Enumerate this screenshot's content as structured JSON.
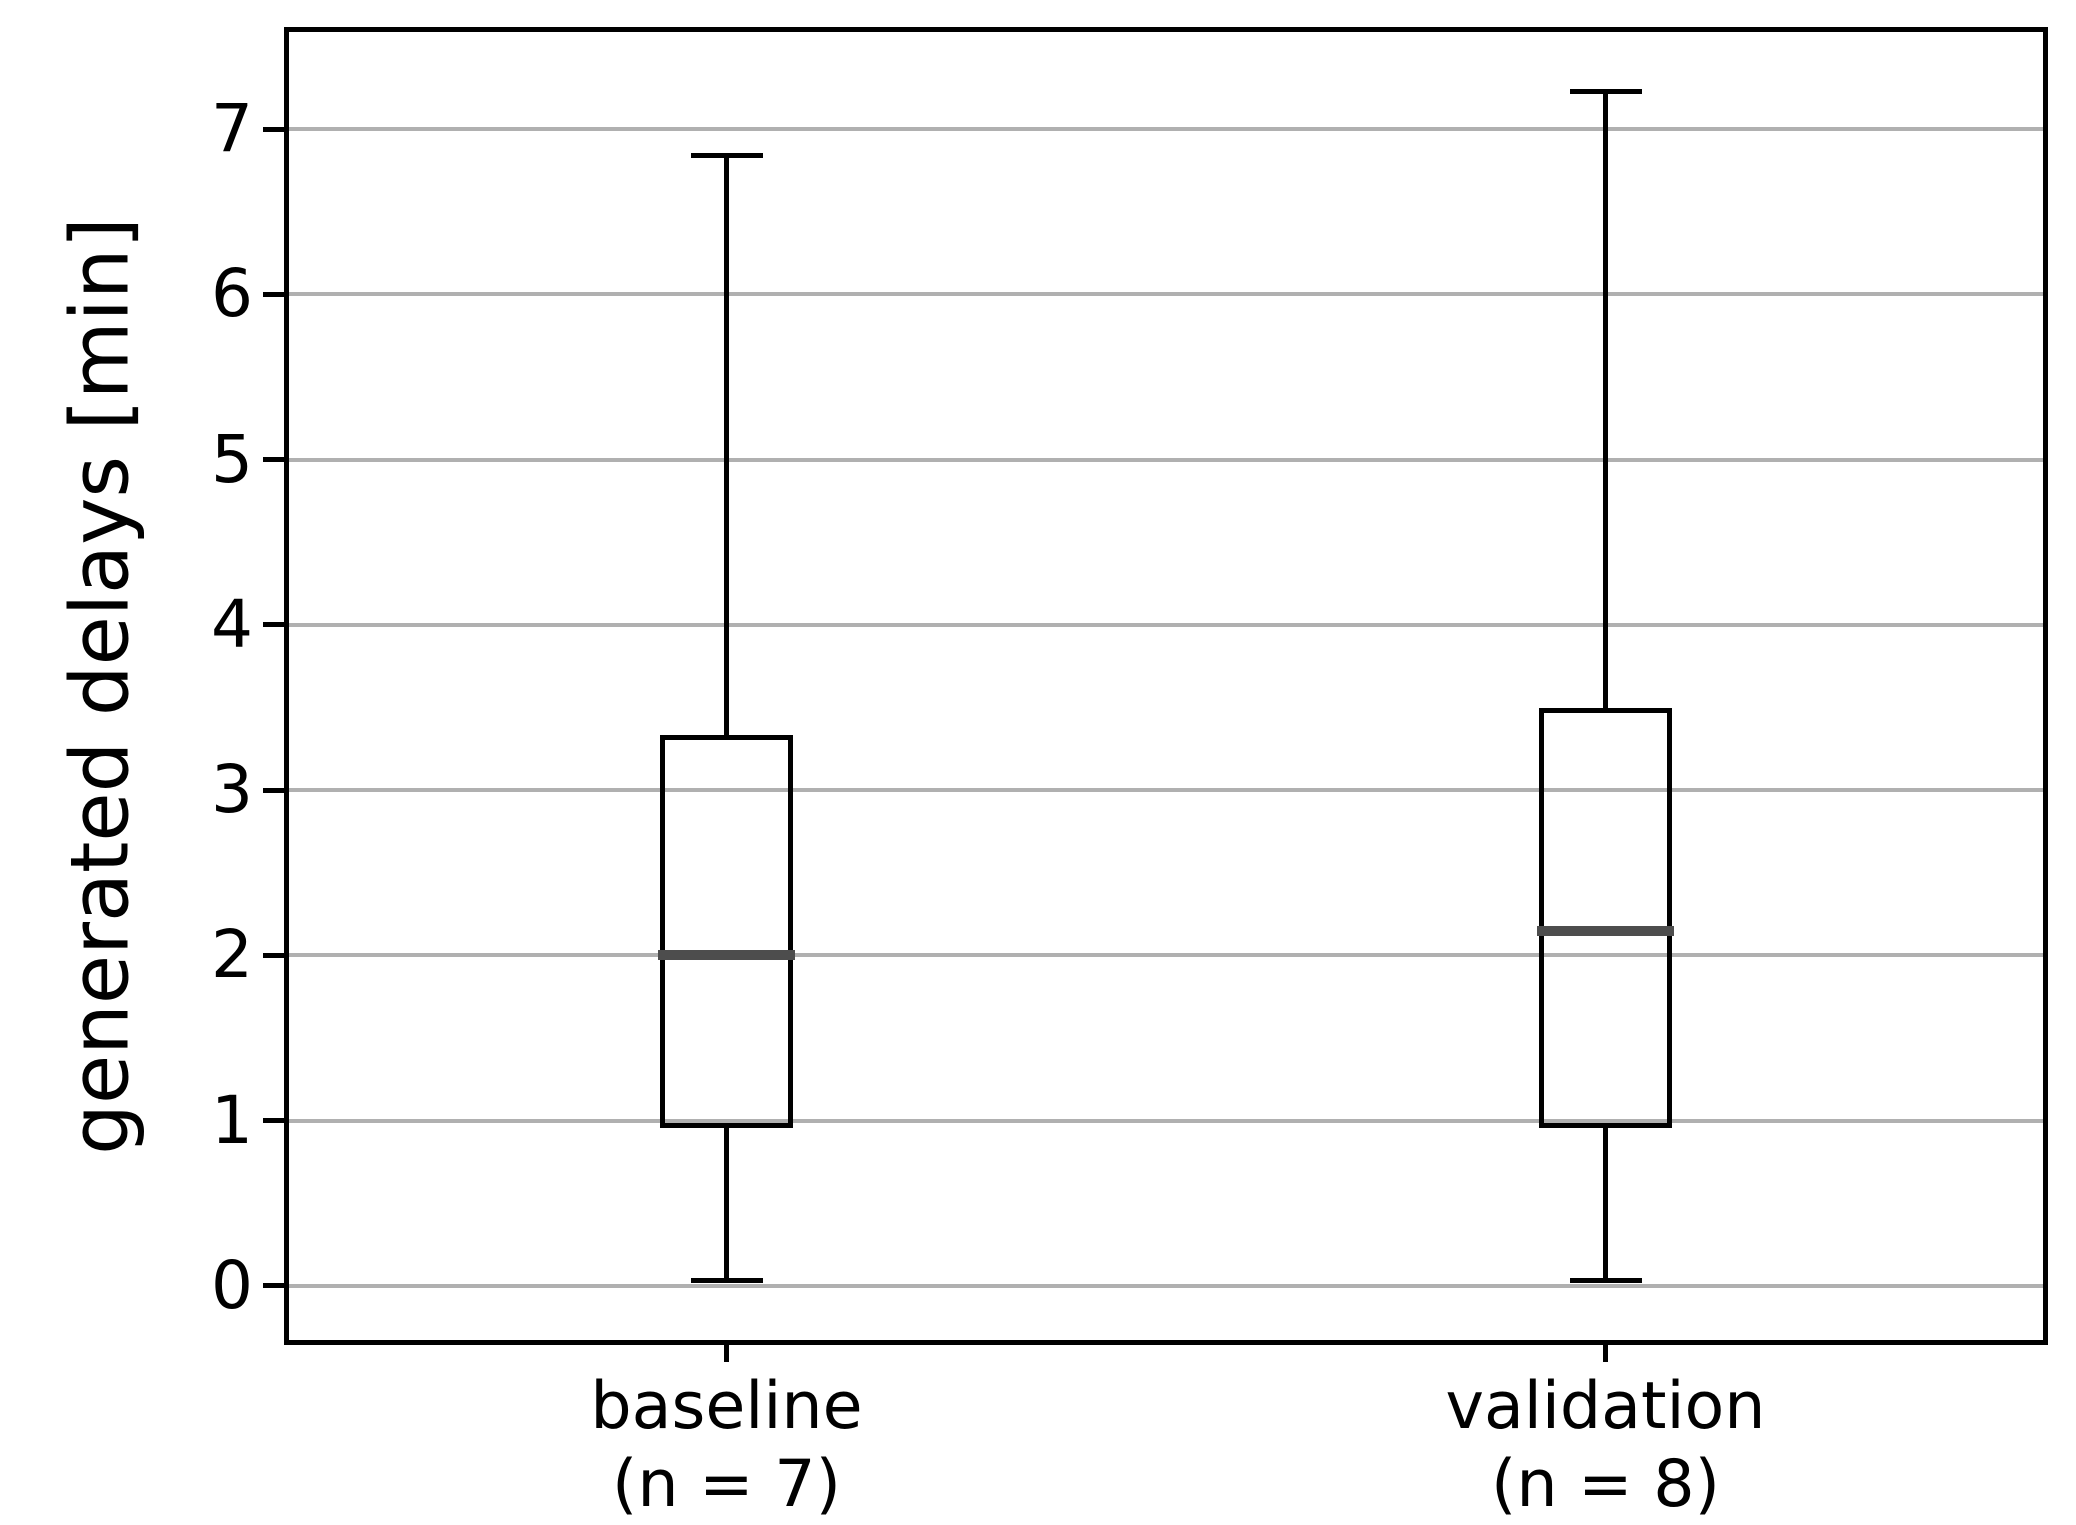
{
  "chart_data": {
    "type": "boxplot",
    "title": "",
    "xlabel": "",
    "ylabel": "generated delays [min]",
    "yticks": [
      "0",
      "1",
      "2",
      "3",
      "4",
      "5",
      "6",
      "7"
    ],
    "ytick_values": [
      0,
      1,
      2,
      3,
      4,
      5,
      6,
      7
    ],
    "ylim": [
      -0.34,
      7.6
    ],
    "grid": "horizontal",
    "legend": "none",
    "colors": {
      "box_line": "#000000",
      "median_line": "#4d4d4d",
      "gridline": "#b0b0b0",
      "background": "#ffffff"
    },
    "categories": [
      {
        "label": "baseline",
        "sub": "(n = 7)",
        "n": 7
      },
      {
        "label": "validation",
        "sub": "(n = 8)",
        "n": 8
      }
    ],
    "series": [
      {
        "name": "baseline",
        "whisker_low": 0.03,
        "q1": 0.97,
        "median": 2.0,
        "q3": 3.32,
        "whisker_high": 6.84
      },
      {
        "name": "validation",
        "whisker_low": 0.03,
        "q1": 0.97,
        "median": 2.15,
        "q3": 3.48,
        "whisker_high": 7.23
      }
    ]
  }
}
